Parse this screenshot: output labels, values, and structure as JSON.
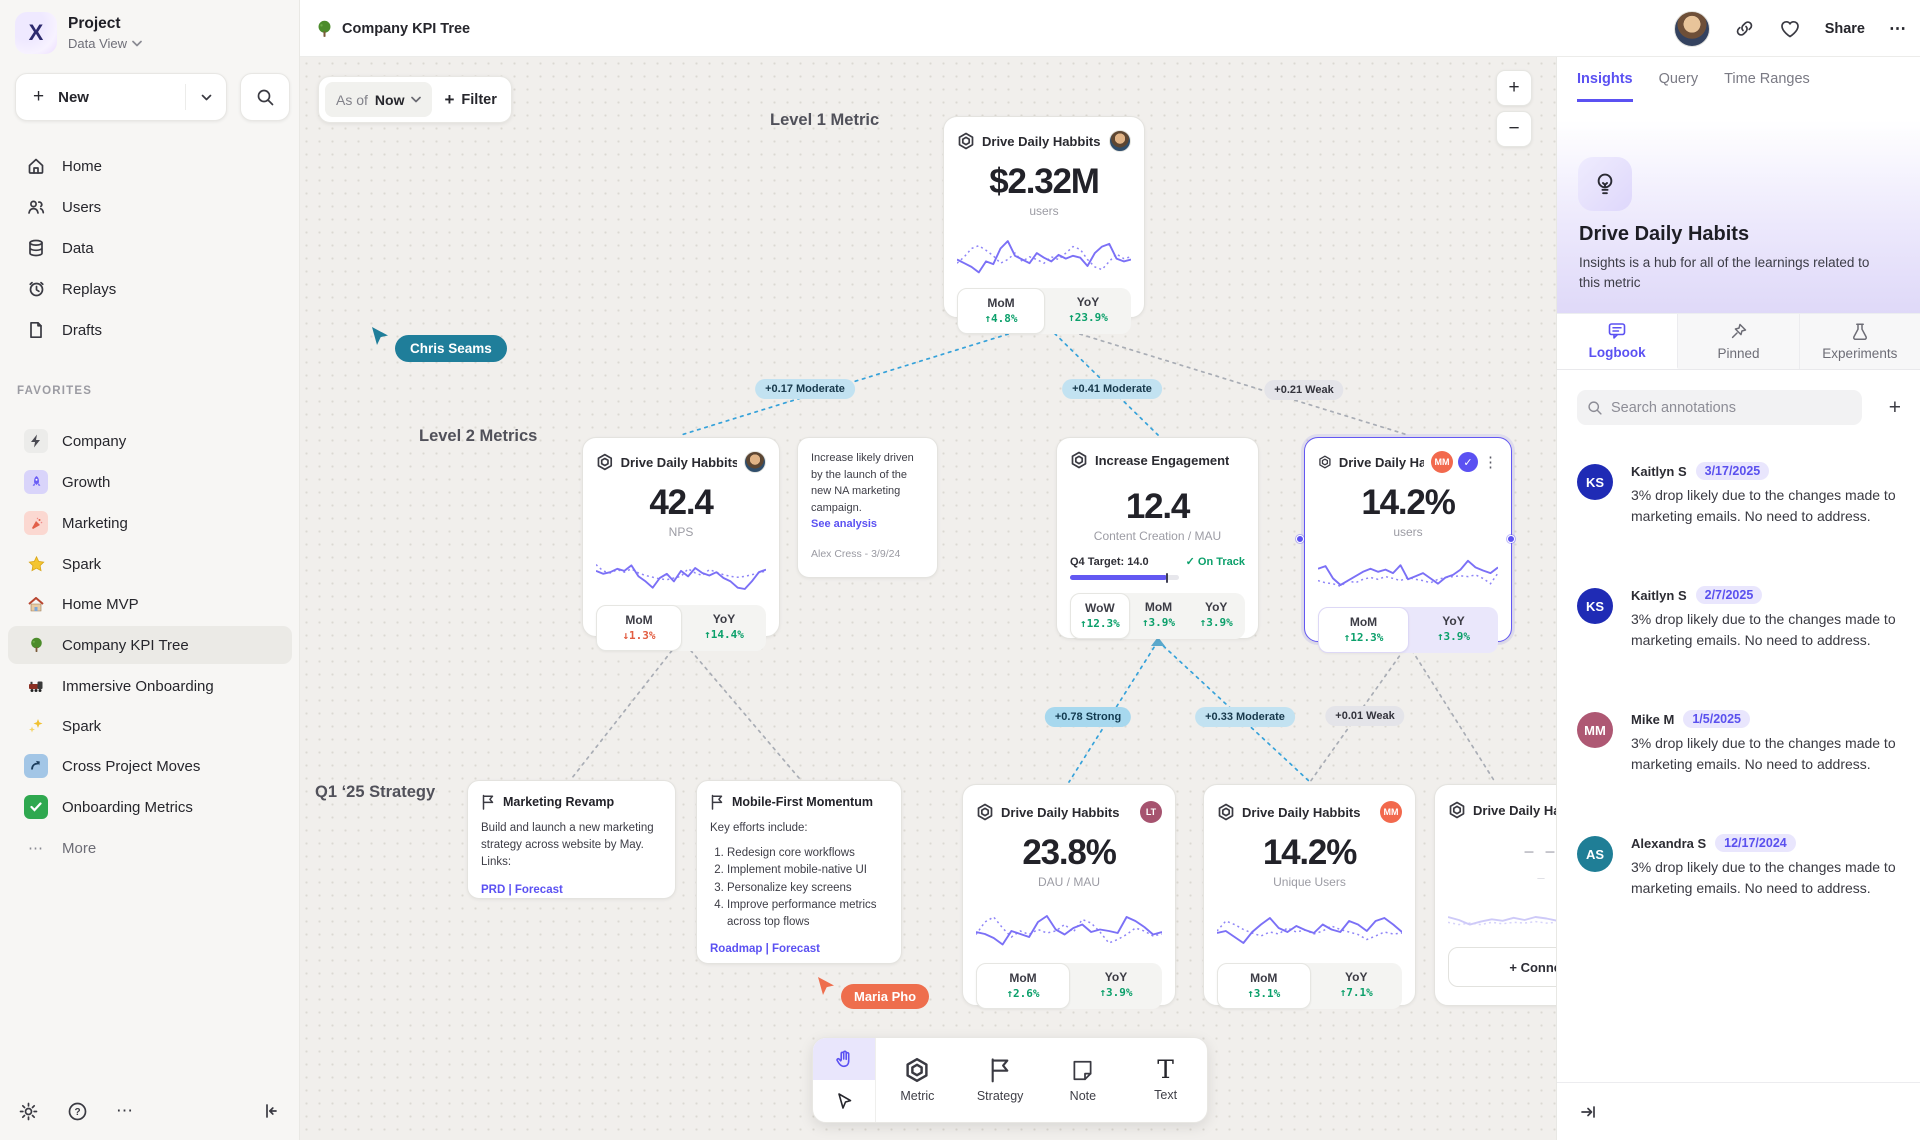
{
  "glyphs": {
    "plus": "+",
    "minus": "−",
    "kebab": "⋮",
    "ellipsis": "⋯",
    "question": "?",
    "check": "✓",
    "x_logo": "X"
  },
  "sidebar": {
    "project_name": "Project",
    "project_view": "Data View",
    "new_label": "New",
    "nav": [
      {
        "label": "Home"
      },
      {
        "label": "Users"
      },
      {
        "label": "Data"
      },
      {
        "label": "Replays"
      },
      {
        "label": "Drafts"
      }
    ],
    "favorites_label": "FAVORITES",
    "favorites": [
      {
        "label": "Company"
      },
      {
        "label": "Growth"
      },
      {
        "label": "Marketing"
      },
      {
        "label": "Spark"
      },
      {
        "label": "Home MVP"
      },
      {
        "label": "Company KPI Tree"
      },
      {
        "label": "Immersive Onboarding"
      },
      {
        "label": "Spark"
      },
      {
        "label": "Cross Project Moves"
      },
      {
        "label": "Onboarding Metrics"
      }
    ],
    "more_label": "More"
  },
  "header": {
    "title": "Company KPI Tree",
    "share_label": "Share"
  },
  "canvas": {
    "as_of_label": "As of",
    "as_of_value": "Now",
    "filter_label": "Filter",
    "level1_label": "Level 1 Metric",
    "level2_label": "Level 2 Metrics",
    "level3_label": "Q1 ‘25 Strategy",
    "cursor1": "Chris Seams",
    "cursor2": "Maria Pho",
    "edges": [
      {
        "label": "+0.17 Moderate",
        "strength": "moderate"
      },
      {
        "label": "+0.41 Moderate",
        "strength": "moderate"
      },
      {
        "label": "+0.21 Weak",
        "strength": "weak"
      },
      {
        "label": "+0.78 Strong",
        "strength": "strong"
      },
      {
        "label": "+0.33 Moderate",
        "strength": "moderate"
      },
      {
        "label": "+0.01 Weak",
        "strength": "weak"
      }
    ],
    "cards": {
      "root": {
        "title": "Drive Daily Habbits",
        "value": "$2.32M",
        "unit": "users",
        "mom_label": "MoM",
        "mom": "↑4.8%",
        "yoy_label": "YoY",
        "yoy": "↑23.9%"
      },
      "nps": {
        "title": "Drive Daily Habbits",
        "value": "42.4",
        "unit": "NPS",
        "mom_label": "MoM",
        "mom": "↓1.3%",
        "yoy_label": "YoY",
        "yoy": "↑14.4%"
      },
      "engagement": {
        "title": "Increase Engagement",
        "value": "12.4",
        "unit": "Content Creation / MAU",
        "target_label": "Q4 Target: 14.0",
        "status": "✓ On Track",
        "progress_pct": 89,
        "wow_label": "WoW",
        "wow": "↑12.3%",
        "mom_label": "MoM",
        "mom": "↑3.9%",
        "yoy_label": "YoY",
        "yoy": "↑3.9%"
      },
      "selected": {
        "title": "Drive Daily Habb..",
        "badge": "MM",
        "badge_color": "#f2694d",
        "value": "14.2%",
        "unit": "users",
        "mom_label": "MoM",
        "mom": "↑12.3%",
        "yoy_label": "YoY",
        "yoy": "↑3.9%"
      },
      "dau": {
        "title": "Drive Daily Habbits",
        "badge": "LT",
        "badge_color": "#a6536f",
        "value": "23.8%",
        "unit": "DAU / MAU",
        "mom_label": "MoM",
        "mom": "↑2.6%",
        "yoy_label": "YoY",
        "yoy": "↑3.9%"
      },
      "unique": {
        "title": "Drive Daily Habbits",
        "badge": "MM",
        "badge_color": "#f2694d",
        "value": "14.2%",
        "unit": "Unique Users",
        "mom_label": "MoM",
        "mom": "↑3.1%",
        "yoy_label": "YoY",
        "yoy": "↑7.1%"
      },
      "partial": {
        "title": "Drive Daily Hab",
        "dash1": "– –",
        "dash2": "–",
        "connect_label": "+ Connect"
      }
    },
    "notes": {
      "analysis": {
        "body": "Increase likely driven by the launch of the new NA marketing campaign.",
        "link": "See analysis",
        "meta": "Alex Cress - 3/9/24"
      },
      "marketing": {
        "title": "Marketing Revamp",
        "body": "Build and launch a new marketing strategy across website by May. Links:",
        "links": "PRD | Forecast"
      },
      "mobile": {
        "title": "Mobile-First Momentum",
        "intro": "Key efforts include:",
        "items": [
          "Redesign core workflows",
          "Implement mobile-native UI",
          "Personalize key screens",
          "Improve performance metrics across top flows"
        ],
        "links": "Roadmap | Forecast"
      }
    },
    "toolbar": {
      "metric": "Metric",
      "strategy": "Strategy",
      "note": "Note",
      "text": "Text"
    }
  },
  "panel": {
    "tabs": [
      {
        "label": "Insights"
      },
      {
        "label": "Query"
      },
      {
        "label": "Time Ranges"
      }
    ],
    "title": "Drive Daily Habits",
    "description": "Insights is a hub for all of the learnings related to this metric",
    "subtabs": [
      {
        "label": "Logbook"
      },
      {
        "label": "Pinned"
      },
      {
        "label": "Experiments"
      }
    ],
    "search_placeholder": "Search annotations",
    "annotations": [
      {
        "initials": "KS",
        "name": "Kaitlyn S",
        "date": "3/17/2025",
        "color": "#1f2bb5",
        "body": "3% drop likely due to the changes made to marketing emails. No need to address."
      },
      {
        "initials": "KS",
        "name": "Kaitlyn S",
        "date": "2/7/2025",
        "color": "#1f2bb5",
        "body": "3% drop likely due to the changes made to marketing emails. No need to address."
      },
      {
        "initials": "MM",
        "name": "Mike M",
        "date": "1/5/2025",
        "color": "#ae5873",
        "body": "3% drop likely due to the changes made to marketing emails. No need to address."
      },
      {
        "initials": "AS",
        "name": "Alexandra S",
        "date": "12/17/2024",
        "color": "#1f7e96",
        "body": "3% drop likely due to the changes made to marketing emails. No need to address."
      }
    ]
  },
  "sparks": {
    "root": {
      "solid": [
        0.38,
        0.3,
        0.22,
        0.1,
        0.34,
        0.28,
        0.62,
        0.78,
        0.46,
        0.38,
        0.3,
        0.52,
        0.42,
        0.34,
        0.48,
        0.4,
        0.46,
        0.42,
        0.24,
        0.52,
        0.66,
        0.72,
        0.4,
        0.34,
        0.38
      ],
      "dotted": [
        0.3,
        0.44,
        0.62,
        0.68,
        0.58,
        0.46,
        0.3,
        0.38,
        0.52,
        0.34,
        0.44,
        0.38,
        0.3,
        0.44,
        0.38,
        0.52,
        0.66,
        0.6,
        0.38,
        0.22,
        0.16,
        0.34,
        0.5,
        0.4,
        0.44
      ]
    },
    "nps": {
      "solid": [
        0.55,
        0.48,
        0.52,
        0.6,
        0.55,
        0.68,
        0.42,
        0.3,
        0.15,
        0.38,
        0.48,
        0.3,
        0.55,
        0.42,
        0.62,
        0.5,
        0.44,
        0.52,
        0.38,
        0.3,
        0.15,
        0.12,
        0.3,
        0.52,
        0.58
      ],
      "dotted": [
        0.7,
        0.55,
        0.5,
        0.58,
        0.52,
        0.6,
        0.5,
        0.44,
        0.4,
        0.36,
        0.34,
        0.38,
        0.42,
        0.6,
        0.5,
        0.44,
        0.58,
        0.52,
        0.46,
        0.42,
        0.4,
        0.42,
        0.46,
        0.5,
        0.55
      ]
    },
    "selected": {
      "solid": [
        0.62,
        0.68,
        0.4,
        0.25,
        0.35,
        0.45,
        0.55,
        0.62,
        0.55,
        0.6,
        0.52,
        0.7,
        0.38,
        0.45,
        0.52,
        0.4,
        0.28,
        0.42,
        0.48,
        0.6,
        0.8,
        0.65,
        0.58,
        0.52,
        0.65
      ],
      "dotted": [
        0.35,
        0.3,
        0.28,
        0.22,
        0.35,
        0.3,
        0.38,
        0.42,
        0.38,
        0.44,
        0.4,
        0.35,
        0.42,
        0.38,
        0.35,
        0.3,
        0.38,
        0.42,
        0.44,
        0.46,
        0.44,
        0.48,
        0.4,
        0.28,
        0.52
      ]
    },
    "dau": {
      "solid": [
        0.4,
        0.36,
        0.28,
        0.15,
        0.42,
        0.36,
        0.3,
        0.6,
        0.72,
        0.45,
        0.35,
        0.48,
        0.55,
        0.4,
        0.45,
        0.42,
        0.38,
        0.7,
        0.62,
        0.5,
        0.35,
        0.4
      ],
      "dotted": [
        0.35,
        0.6,
        0.7,
        0.48,
        0.3,
        0.42,
        0.35,
        0.45,
        0.38,
        0.42,
        0.55,
        0.4,
        0.65,
        0.58,
        0.4,
        0.18,
        0.25,
        0.35,
        0.48,
        0.42,
        0.32,
        0.36
      ]
    },
    "unique": {
      "solid": [
        0.38,
        0.42,
        0.3,
        0.18,
        0.4,
        0.55,
        0.68,
        0.48,
        0.4,
        0.52,
        0.44,
        0.38,
        0.55,
        0.45,
        0.4,
        0.62,
        0.55,
        0.42,
        0.62,
        0.68,
        0.55,
        0.4
      ],
      "dotted": [
        0.42,
        0.62,
        0.55,
        0.45,
        0.38,
        0.32,
        0.4,
        0.36,
        0.48,
        0.4,
        0.44,
        0.36,
        0.42,
        0.52,
        0.45,
        0.4,
        0.35,
        0.25,
        0.32,
        0.4,
        0.36,
        0.38
      ]
    },
    "partial": {
      "color": "#c9c5f8",
      "solid": [
        0.5,
        0.42,
        0.3,
        0.38,
        0.44,
        0.4,
        0.48,
        0.42,
        0.5,
        0.46,
        0.4,
        0.52,
        0.44,
        0.4,
        0.5,
        0.56,
        0.44,
        0.4
      ],
      "dotted": [
        0.36,
        0.3,
        0.34,
        0.3,
        0.36,
        0.32,
        0.36,
        0.34,
        0.38,
        0.34,
        0.36,
        0.32,
        0.38,
        0.36,
        0.34,
        0.38,
        0.34,
        0.36
      ]
    }
  }
}
